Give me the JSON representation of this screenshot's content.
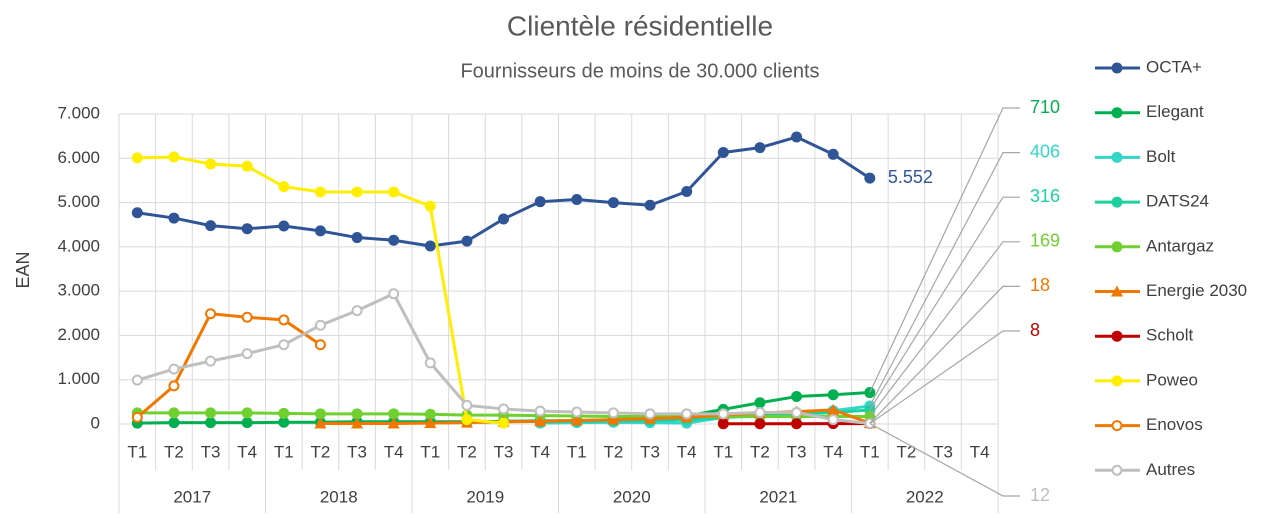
{
  "chart_data": {
    "type": "line",
    "title": "Clientèle résidentielle",
    "subtitle": "Fournisseurs de moins de 30.000 clients",
    "y_label": "EAN",
    "categories": [
      "T1",
      "T2",
      "T3",
      "T4",
      "T1",
      "T2",
      "T3",
      "T4",
      "T1",
      "T2",
      "T3",
      "T4",
      "T1",
      "T2",
      "T3",
      "T4",
      "T1",
      "T2",
      "T3",
      "T4",
      "T1",
      "T2",
      "T3",
      "T4"
    ],
    "years": [
      "2017",
      "2018",
      "2019",
      "2020",
      "2021",
      "2022"
    ],
    "ylim": [
      0,
      7000
    ],
    "yticks": [
      0,
      {
        "value": 1000,
        "label": "1.000"
      },
      {
        "value": 2000,
        "label": "2.000"
      },
      {
        "value": 3000,
        "label": "3.000"
      },
      {
        "value": 4000,
        "label": "4.000"
      },
      {
        "value": 5000,
        "label": "5.000"
      },
      {
        "value": 6000,
        "label": "6.000"
      },
      {
        "value": 7000,
        "label": "7.000"
      }
    ],
    "grid": true,
    "legend": "right",
    "series": [
      {
        "name": "OCTA+",
        "color": "#2f5597",
        "marker": "circle",
        "values": [
          4770,
          4650,
          4480,
          4410,
          4470,
          4360,
          4210,
          4150,
          4020,
          4130,
          4630,
          5020,
          5070,
          5000,
          4940,
          5250,
          6130,
          6240,
          6480,
          6090,
          5552,
          null,
          null,
          null
        ],
        "value_labels": [
          null,
          null,
          null,
          null,
          null,
          null,
          null,
          null,
          null,
          null,
          null,
          null,
          null,
          null,
          null,
          null,
          null,
          null,
          null,
          null,
          "5.552",
          null,
          null,
          null
        ]
      },
      {
        "name": "Elegant",
        "color": "#00b050",
        "marker": "circle",
        "values": [
          20,
          30,
          30,
          30,
          40,
          40,
          50,
          50,
          50,
          50,
          60,
          70,
          80,
          90,
          120,
          180,
          330,
          480,
          620,
          660,
          710,
          null,
          null,
          null
        ]
      },
      {
        "name": "Bolt",
        "color": "#33d6c8",
        "marker": "circle",
        "values": [
          null,
          null,
          null,
          null,
          null,
          null,
          null,
          null,
          null,
          null,
          null,
          20,
          30,
          40,
          30,
          20,
          150,
          200,
          250,
          300,
          406,
          null,
          null,
          null
        ]
      },
      {
        "name": "DATS24",
        "color": "#1ecfa0",
        "marker": "circle",
        "values": [
          null,
          null,
          null,
          null,
          null,
          null,
          null,
          null,
          null,
          null,
          null,
          50,
          60,
          70,
          80,
          100,
          150,
          180,
          220,
          260,
          316,
          null,
          null,
          null
        ]
      },
      {
        "name": "Antargaz",
        "color": "#70d030",
        "marker": "circle",
        "values": [
          250,
          250,
          250,
          250,
          240,
          230,
          230,
          230,
          220,
          200,
          200,
          190,
          180,
          170,
          170,
          170,
          170,
          170,
          170,
          170,
          169,
          null,
          null,
          null
        ]
      },
      {
        "name": "Energie 2030",
        "color": "#f07800",
        "marker": "triangle",
        "values": [
          null,
          null,
          null,
          null,
          null,
          10,
          10,
          10,
          20,
          30,
          50,
          60,
          80,
          100,
          120,
          150,
          200,
          250,
          280,
          320,
          18,
          null,
          null,
          null
        ]
      },
      {
        "name": "Scholt",
        "color": "#c00000",
        "marker": "circle",
        "values": [
          null,
          null,
          null,
          null,
          null,
          null,
          null,
          null,
          null,
          null,
          null,
          null,
          null,
          null,
          null,
          null,
          5,
          6,
          7,
          8,
          8,
          null,
          null,
          null
        ]
      },
      {
        "name": "Poweo",
        "color": "#ffee00",
        "marker": "circle",
        "values": [
          6010,
          6030,
          5870,
          5820,
          5360,
          5240,
          5240,
          5240,
          4920,
          100,
          20,
          null,
          null,
          null,
          null,
          null,
          null,
          null,
          null,
          null,
          null,
          null,
          null,
          null
        ]
      },
      {
        "name": "Enovos",
        "color": "#f07800",
        "marker": "open",
        "values": [
          150,
          860,
          2490,
          2410,
          2350,
          1790,
          null,
          null,
          null,
          null,
          null,
          null,
          null,
          null,
          null,
          null,
          null,
          null,
          null,
          null,
          null,
          null,
          null,
          null
        ]
      },
      {
        "name": "Autres",
        "color": "#bfbfbf",
        "marker": "open",
        "values": [
          990,
          1240,
          1420,
          1590,
          1790,
          2230,
          2560,
          2940,
          1380,
          420,
          340,
          290,
          270,
          250,
          230,
          230,
          230,
          260,
          260,
          100,
          12,
          null,
          null,
          null
        ]
      }
    ]
  }
}
